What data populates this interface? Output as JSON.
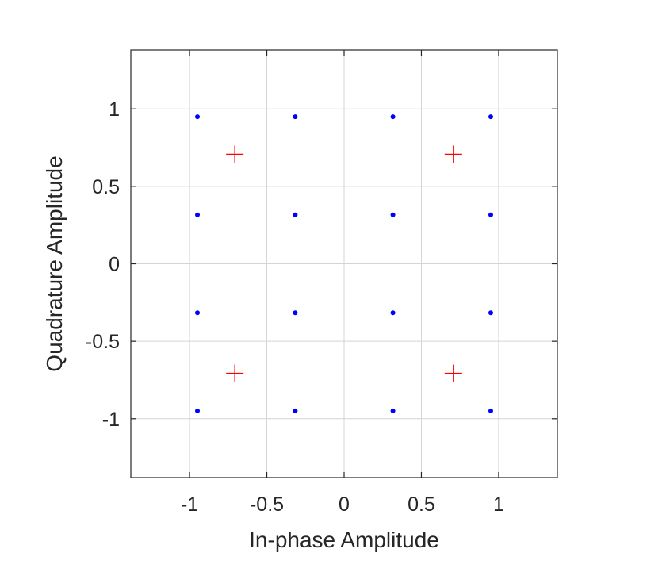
{
  "chart_data": {
    "type": "scatter",
    "title": "",
    "xlabel": "In-phase Amplitude",
    "ylabel": "Quadrature Amplitude",
    "xlim": [
      -1.38,
      1.38
    ],
    "ylim": [
      -1.38,
      1.38
    ],
    "grid": true,
    "xticks": [
      -1,
      -0.5,
      0,
      0.5,
      1
    ],
    "yticks": [
      -1,
      -0.5,
      0,
      0.5,
      1
    ],
    "xtick_labels": [
      "-1",
      "-0.5",
      "0",
      "0.5",
      "1"
    ],
    "ytick_labels": [
      "-1",
      "-0.5",
      "0",
      "0.5",
      "1"
    ],
    "series": [
      {
        "marker": "dot",
        "color": "#0000ff",
        "points": [
          [
            -0.949,
            0.949
          ],
          [
            -0.316,
            0.949
          ],
          [
            0.316,
            0.949
          ],
          [
            0.949,
            0.949
          ],
          [
            -0.949,
            0.316
          ],
          [
            -0.316,
            0.316
          ],
          [
            0.316,
            0.316
          ],
          [
            0.949,
            0.316
          ],
          [
            -0.949,
            -0.316
          ],
          [
            -0.316,
            -0.316
          ],
          [
            0.316,
            -0.316
          ],
          [
            0.949,
            -0.316
          ],
          [
            -0.949,
            -0.949
          ],
          [
            -0.316,
            -0.949
          ],
          [
            0.316,
            -0.949
          ],
          [
            0.949,
            -0.949
          ]
        ]
      },
      {
        "marker": "plus",
        "color": "#ff0000",
        "points": [
          [
            -0.707,
            0.707
          ],
          [
            0.707,
            0.707
          ],
          [
            -0.707,
            -0.707
          ],
          [
            0.707,
            -0.707
          ]
        ]
      }
    ]
  }
}
